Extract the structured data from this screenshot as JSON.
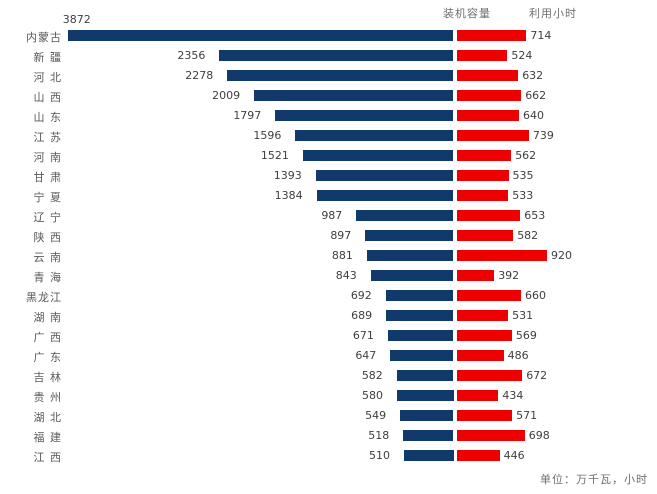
{
  "chart_data": {
    "type": "bar",
    "subtype": "diverging-horizontal",
    "title": "",
    "legend": [
      "装机容量",
      "利用小时"
    ],
    "legend_position": "top-right",
    "unit_note": "单位：万千瓦，小时",
    "categories": [
      "内蒙古",
      "新 疆",
      "河 北",
      "山 西",
      "山 东",
      "江 苏",
      "河 南",
      "甘 肃",
      "宁 夏",
      "辽 宁",
      "陕 西",
      "云 南",
      "青 海",
      "黑龙江",
      "湖 南",
      "广 西",
      "广 东",
      "吉 林",
      "贵 州",
      "湖 北",
      "福 建",
      "江 西"
    ],
    "series": [
      {
        "name": "装机容量",
        "direction": "left",
        "color": "#103A6B",
        "values": [
          3872,
          2356,
          2278,
          2009,
          1797,
          1596,
          1521,
          1393,
          1384,
          987,
          897,
          881,
          843,
          692,
          689,
          671,
          647,
          582,
          580,
          549,
          518,
          510
        ]
      },
      {
        "name": "利用小时",
        "direction": "right",
        "color": "#EE0000",
        "values": [
          714,
          524,
          632,
          662,
          640,
          739,
          562,
          535,
          533,
          653,
          582,
          920,
          392,
          660,
          531,
          569,
          486,
          672,
          434,
          571,
          698,
          446
        ]
      }
    ]
  },
  "colors": {
    "capacity_bar": "#103A6B",
    "hours_bar": "#EE0000",
    "category_text": "#595959",
    "value_text": "#3F3F3F",
    "legend_text": "#6F6F6F",
    "background": "#FFFFFF"
  }
}
